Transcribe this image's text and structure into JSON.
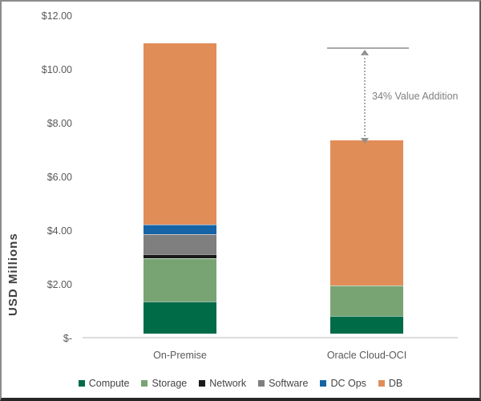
{
  "chart_data": {
    "type": "bar",
    "stacked": true,
    "title": "",
    "xlabel": "",
    "ylabel": "USD Millions",
    "ylim": [
      0,
      12
    ],
    "grid": false,
    "legend_position": "bottom",
    "y_ticks": [
      {
        "value": 0,
        "label": "$-"
      },
      {
        "value": 2,
        "label": "$2.00"
      },
      {
        "value": 4,
        "label": "$4.00"
      },
      {
        "value": 6,
        "label": "$6.00"
      },
      {
        "value": 8,
        "label": "$8.00"
      },
      {
        "value": 10,
        "label": "$10.00"
      },
      {
        "value": 12,
        "label": "$12.00"
      }
    ],
    "categories": [
      "On-Premise",
      "Oracle Cloud-OCI"
    ],
    "series": [
      {
        "name": "Compute",
        "color": "#006B47",
        "values": [
          1.2,
          0.65
        ]
      },
      {
        "name": "Storage",
        "color": "#78A474",
        "values": [
          1.6,
          1.15
        ]
      },
      {
        "name": "Network",
        "color": "#1A1A1A",
        "values": [
          0.15,
          0.0
        ]
      },
      {
        "name": "Software",
        "color": "#7F7F7F",
        "values": [
          0.75,
          0.0
        ]
      },
      {
        "name": "DC Ops",
        "color": "#1664A5",
        "values": [
          0.35,
          0.0
        ]
      },
      {
        "name": "DB",
        "color": "#E18D58",
        "values": [
          6.75,
          5.4
        ]
      }
    ],
    "annotation": {
      "text": "34% Value Addition",
      "from_category": "On-Premise",
      "to_category": "Oracle Cloud-OCI"
    },
    "colors": {
      "axis_line": "#DCDCDC",
      "tick_text": "#595959",
      "legend_text": "#454545",
      "annotation": "#8F8F8F"
    }
  }
}
